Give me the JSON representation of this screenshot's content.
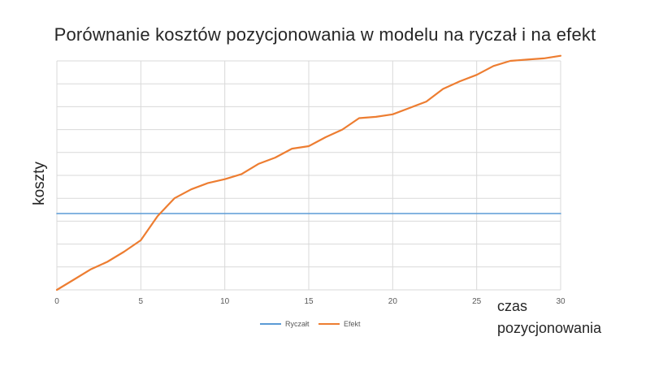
{
  "chart_data": {
    "type": "line",
    "title": "Porównanie kosztów pozycjonowania w modelu na ryczał i na efekt",
    "xlabel_line1": "czas",
    "xlabel_line2": "pozycjonowania",
    "ylabel": "koszty",
    "xlim": [
      0,
      30
    ],
    "ylim": [
      0,
      9
    ],
    "x_ticks": [
      0,
      5,
      10,
      15,
      20,
      25,
      30
    ],
    "grid": true,
    "legend_position": "bottom",
    "series": [
      {
        "name": "Ryczałt",
        "color": "#5B9BD5",
        "x": [
          0,
          30
        ],
        "y": [
          3,
          3
        ]
      },
      {
        "name": "Efekt",
        "color": "#ED7D31",
        "x": [
          0,
          1,
          2,
          3,
          4,
          5,
          6,
          7,
          8,
          9,
          10,
          11,
          12,
          13,
          14,
          15,
          16,
          17,
          18,
          19,
          20,
          21,
          22,
          23,
          24,
          25,
          26,
          27,
          28,
          29,
          30
        ],
        "y": [
          0,
          0.4,
          0.8,
          1.1,
          1.5,
          1.95,
          2.9,
          3.6,
          3.95,
          4.2,
          4.35,
          4.55,
          4.95,
          5.2,
          5.55,
          5.65,
          6.0,
          6.3,
          6.75,
          6.8,
          6.9,
          7.15,
          7.4,
          7.9,
          8.2,
          8.45,
          8.8,
          9.0,
          9.05,
          9.1,
          9.2
        ]
      }
    ]
  }
}
